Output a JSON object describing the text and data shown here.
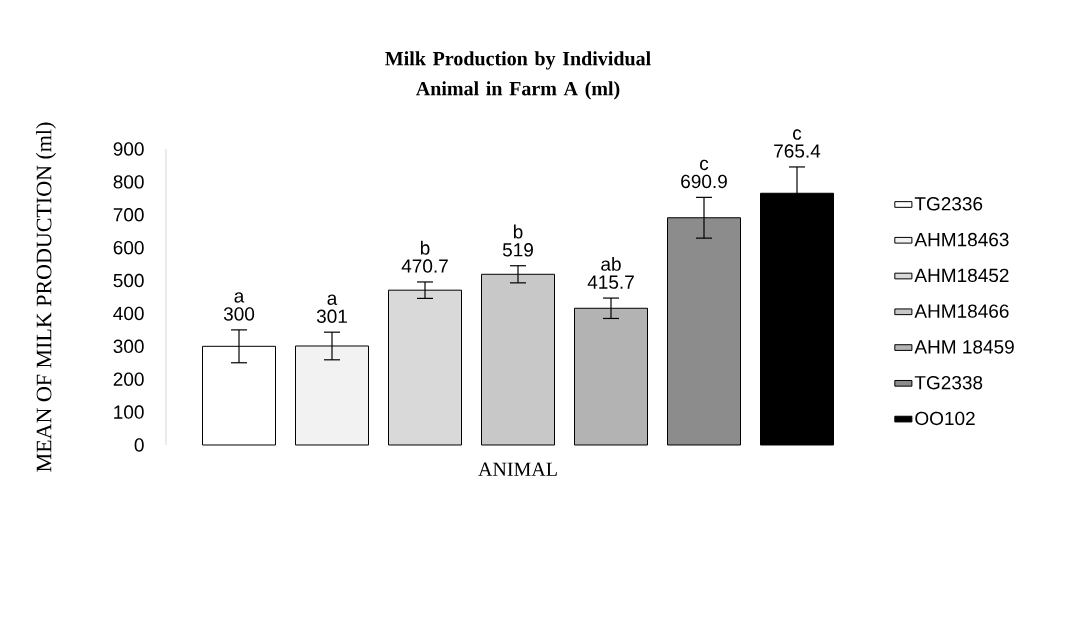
{
  "chart_data": {
    "type": "bar",
    "title": "Milk Production by Individual Animal in Farm A (ml)",
    "xlabel": "ANIMAL",
    "ylabel": "MEAN OF MILK PRODUCTION (ml)",
    "categories": [
      null
    ],
    "series": [
      {
        "name": "TG2336",
        "color": "#ffffff",
        "values": [
          300
        ],
        "errors": [
          50
        ]
      },
      {
        "name": "AHM18463",
        "color": "#f2f2f2",
        "values": [
          301
        ],
        "errors": [
          42
        ]
      },
      {
        "name": "AHM18452",
        "color": "#d9d9d9",
        "values": [
          470.7
        ],
        "errors": [
          25
        ]
      },
      {
        "name": "AHM18466",
        "color": "#c8c8c8",
        "values": [
          519
        ],
        "errors": [
          26
        ]
      },
      {
        "name": "AHM 18459",
        "color": "#b3b3b3",
        "values": [
          415.7
        ],
        "errors": [
          31
        ]
      },
      {
        "name": "TG2338",
        "color": "#8c8c8c",
        "values": [
          690.9
        ],
        "errors": [
          62
        ]
      },
      {
        "name": "OO102",
        "color": "#000000",
        "values": [
          765.4
        ],
        "errors": [
          80
        ]
      }
    ],
    "annotations": [
      {
        "text": "a",
        "y": 300
      },
      {
        "text": "a",
        "y": 301
      },
      {
        "text": "b",
        "y": 470.7
      },
      {
        "text": "b",
        "y": 519
      },
      {
        "text": "ab",
        "y": 415.7
      },
      {
        "text": "c",
        "y": 690.9
      },
      {
        "text": "c",
        "y": 765.4
      }
    ],
    "ylim": [
      0,
      900
    ],
    "yticks": [
      0,
      100,
      200,
      300,
      400,
      500,
      600,
      700,
      800,
      900
    ],
    "data_labels": true,
    "legend": "right",
    "grid": false
  }
}
